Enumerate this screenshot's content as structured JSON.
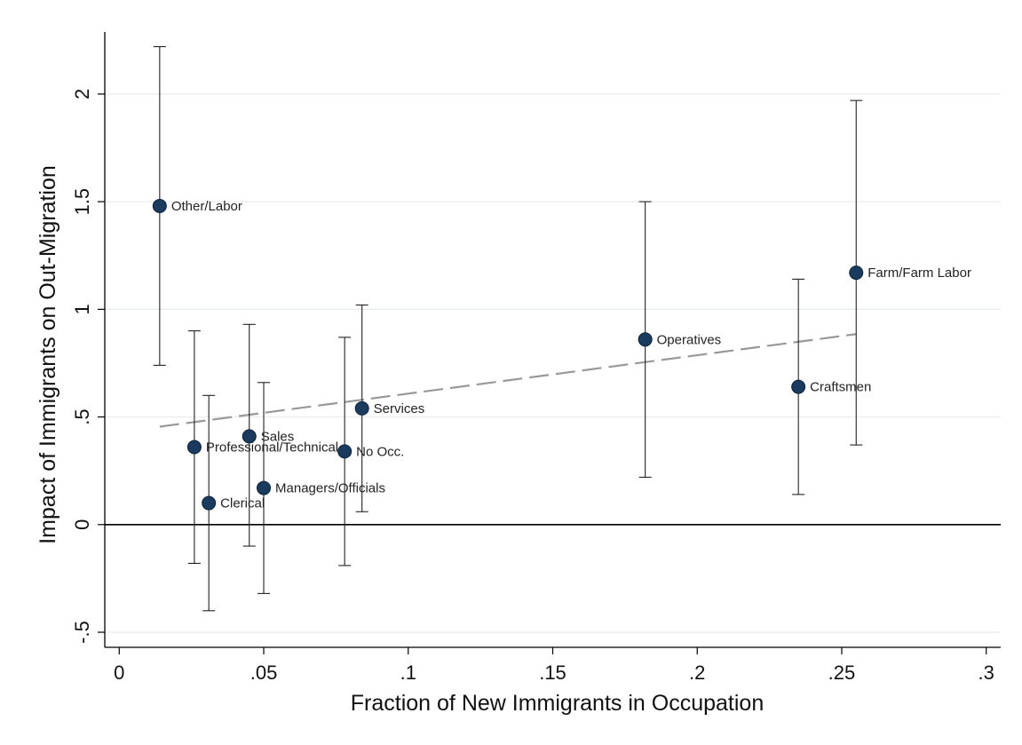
{
  "chart_data": {
    "type": "scatter",
    "title": "",
    "xlabel": "Fraction of New Immigrants in Occupation",
    "ylabel": "Impact of Immigrants on Out-Migration",
    "xlim": [
      -0.005,
      0.305
    ],
    "ylim": [
      -0.57,
      2.28
    ],
    "x_ticks": [
      {
        "value": 0,
        "label": "0"
      },
      {
        "value": 0.05,
        "label": ".05"
      },
      {
        "value": 0.1,
        "label": ".1"
      },
      {
        "value": 0.15,
        "label": ".15"
      },
      {
        "value": 0.2,
        "label": ".2"
      },
      {
        "value": 0.25,
        "label": ".25"
      },
      {
        "value": 0.3,
        "label": ".3"
      }
    ],
    "y_ticks": [
      {
        "value": -0.5,
        "label": "-.5"
      },
      {
        "value": 0,
        "label": "0"
      },
      {
        "value": 0.5,
        "label": ".5"
      },
      {
        "value": 1,
        "label": "1"
      },
      {
        "value": 1.5,
        "label": "1.5"
      },
      {
        "value": 2,
        "label": "2"
      }
    ],
    "grid": "horizontal",
    "reference_line_y": 0,
    "fit_line": {
      "x": [
        0.014,
        0.255
      ],
      "y": [
        0.455,
        0.885
      ],
      "style": "dashed",
      "color": "#999999"
    },
    "marker_color": "#1a3a5e",
    "points": [
      {
        "label": "Other/Labor",
        "x": 0.014,
        "y": 1.48,
        "ci": [
          0.74,
          2.22
        ],
        "label_side": "right"
      },
      {
        "label": "Professional/Technical",
        "x": 0.026,
        "y": 0.36,
        "ci": [
          -0.18,
          0.9
        ],
        "label_side": "right"
      },
      {
        "label": "Clerical",
        "x": 0.031,
        "y": 0.1,
        "ci": [
          -0.4,
          0.6
        ],
        "label_side": "right"
      },
      {
        "label": "Sales",
        "x": 0.045,
        "y": 0.41,
        "ci": [
          -0.1,
          0.93
        ],
        "label_side": "right"
      },
      {
        "label": "Managers/Officials",
        "x": 0.05,
        "y": 0.17,
        "ci": [
          -0.32,
          0.66
        ],
        "label_side": "right"
      },
      {
        "label": "No Occ.",
        "x": 0.078,
        "y": 0.34,
        "ci": [
          -0.19,
          0.87
        ],
        "label_side": "right"
      },
      {
        "label": "Services",
        "x": 0.084,
        "y": 0.54,
        "ci": [
          0.06,
          1.02
        ],
        "label_side": "right"
      },
      {
        "label": "Operatives",
        "x": 0.182,
        "y": 0.86,
        "ci": [
          0.22,
          1.5
        ],
        "label_side": "right"
      },
      {
        "label": "Craftsmen",
        "x": 0.235,
        "y": 0.64,
        "ci": [
          0.14,
          1.14
        ],
        "label_side": "right"
      },
      {
        "label": "Farm/Farm Labor",
        "x": 0.255,
        "y": 1.17,
        "ci": [
          0.37,
          1.97
        ],
        "label_side": "right"
      }
    ]
  }
}
